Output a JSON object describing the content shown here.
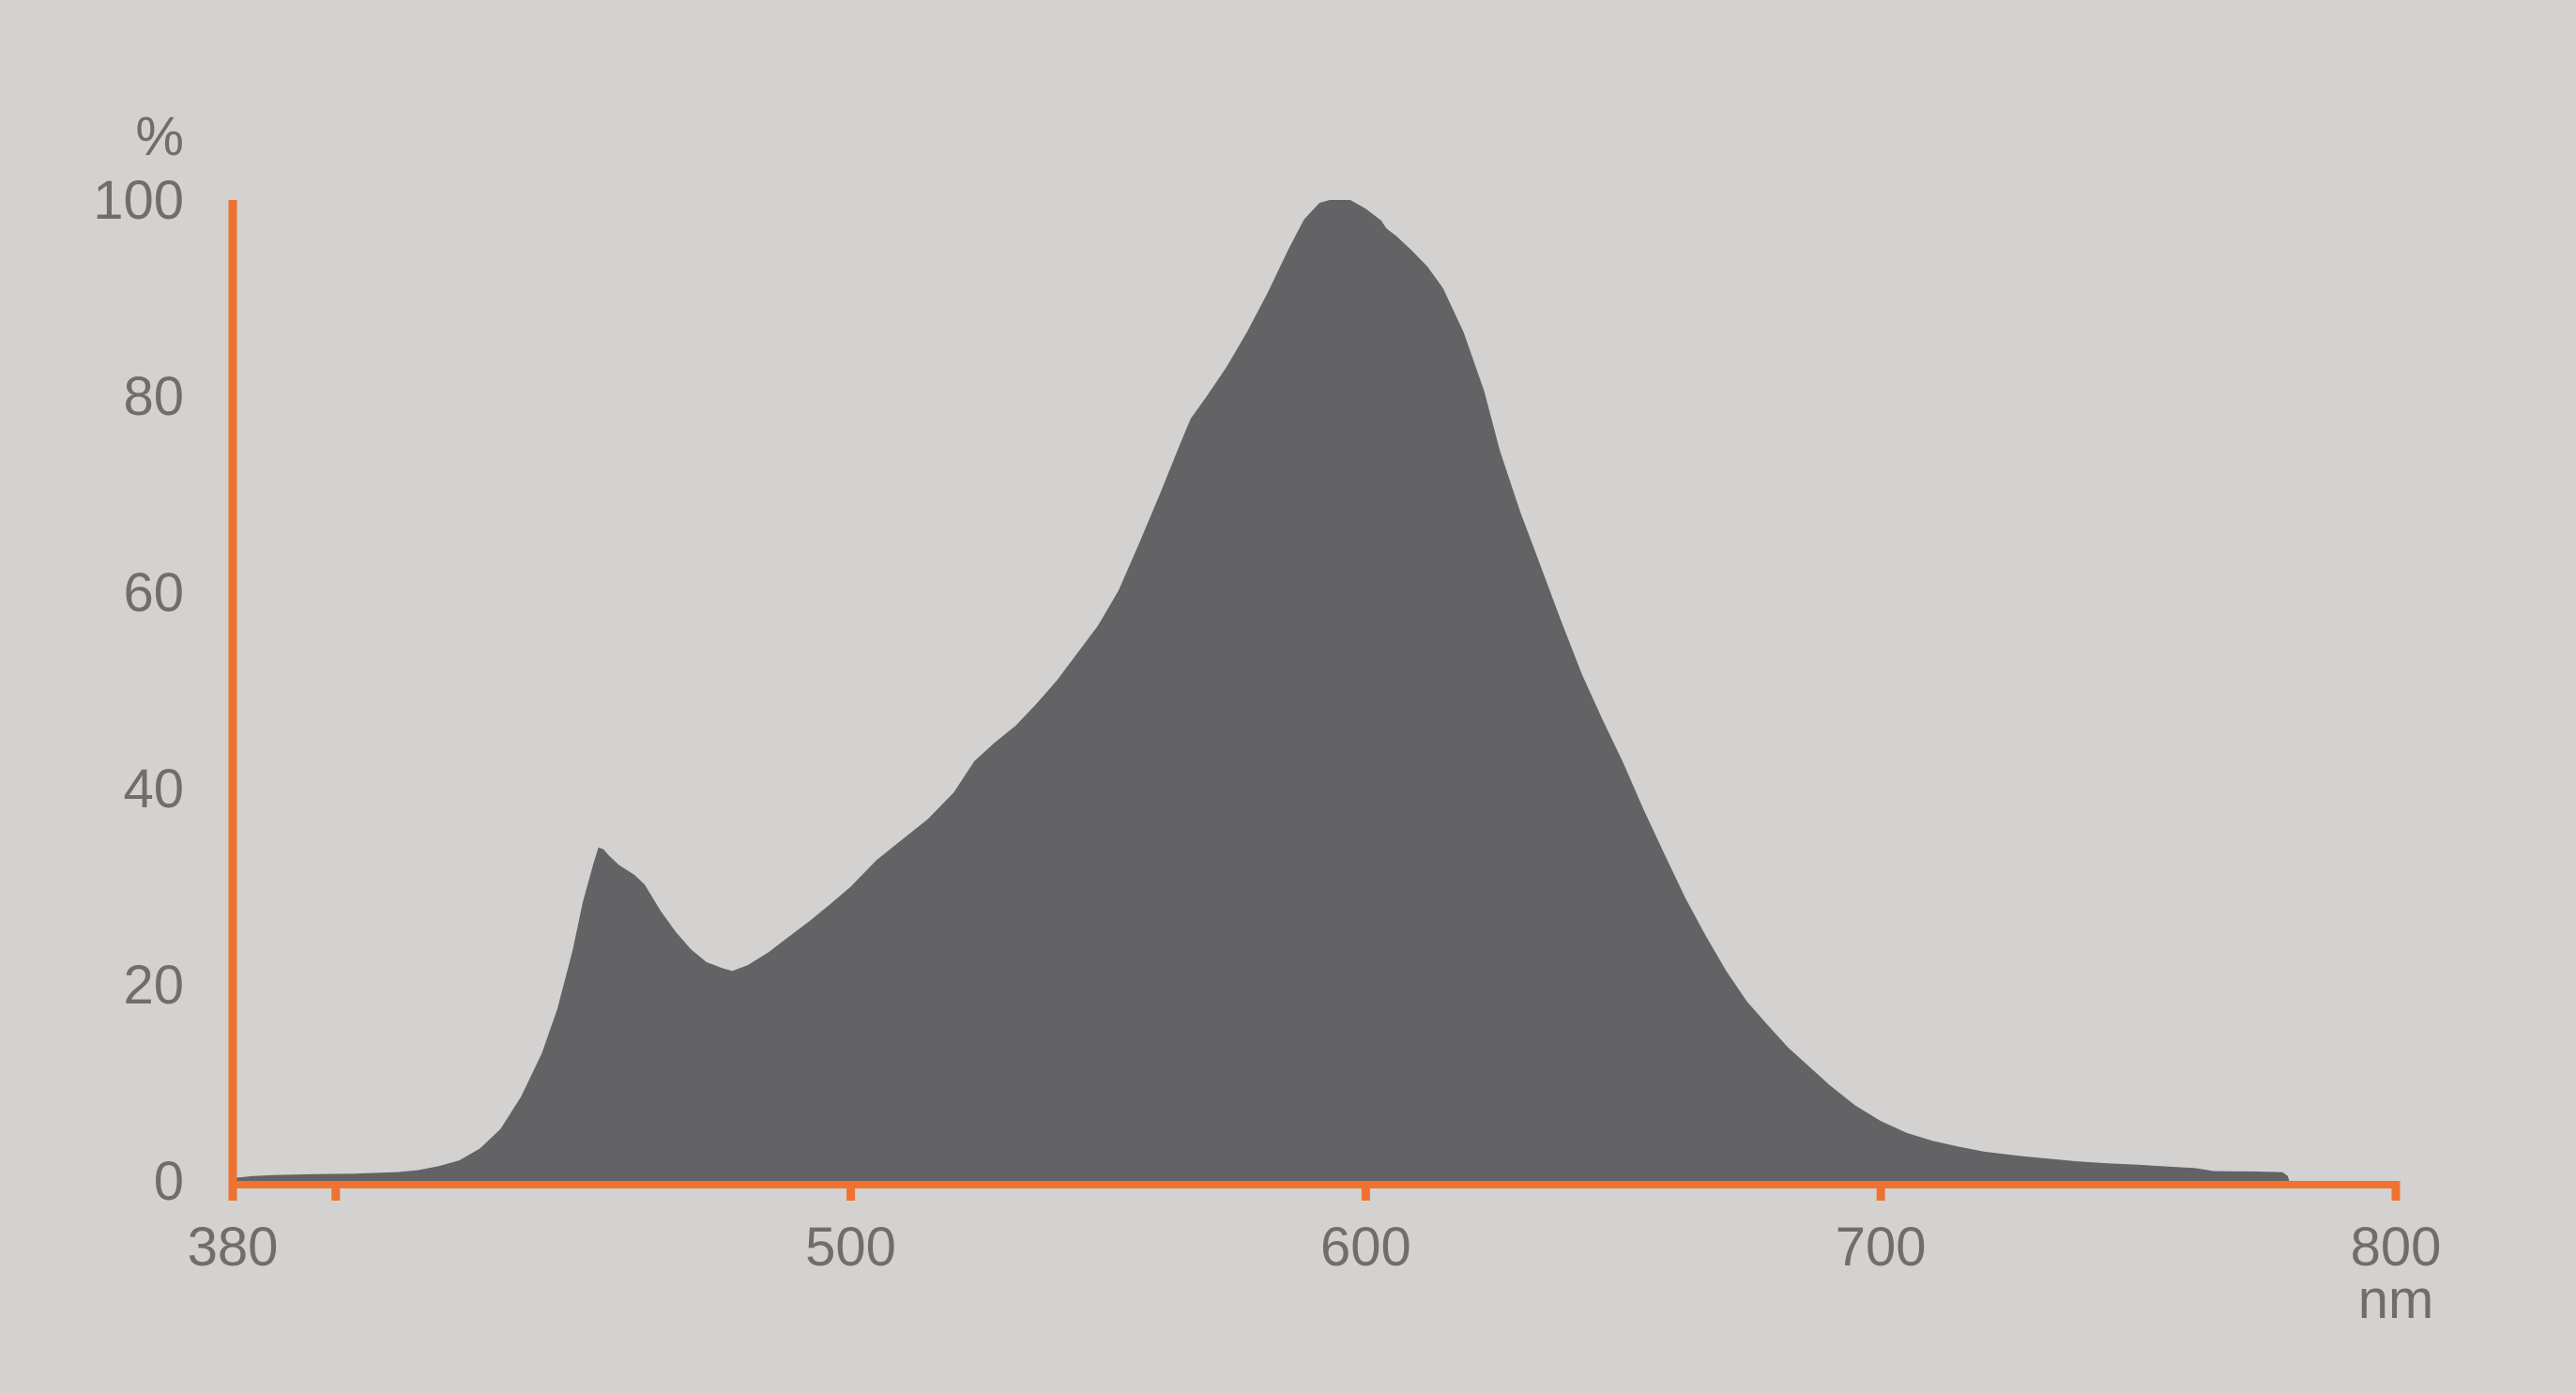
{
  "colors": {
    "background": "#D3D2D0",
    "curve_fill": "#636366",
    "axis": "#EF7230",
    "label_text": "#706E6B"
  },
  "chart_data": {
    "type": "area",
    "title": "",
    "xlabel": "nm",
    "ylabel": "%",
    "xlim": [
      380,
      800
    ],
    "ylim": [
      0,
      100
    ],
    "grid": false,
    "legend": false,
    "x_axis": {
      "unit": "nm",
      "ticks": [
        {
          "value": 380,
          "label": "380",
          "tick_mark": false
        },
        {
          "value": 400,
          "label": "",
          "tick_mark": true
        },
        {
          "value": 500,
          "label": "500",
          "tick_mark": true
        },
        {
          "value": 600,
          "label": "600",
          "tick_mark": true
        },
        {
          "value": 700,
          "label": "700",
          "tick_mark": true
        },
        {
          "value": 800,
          "label": "800",
          "tick_mark": true
        }
      ]
    },
    "y_axis": {
      "unit": "%",
      "ticks": [
        {
          "value": 0,
          "label": "0"
        },
        {
          "value": 20,
          "label": "20"
        },
        {
          "value": 40,
          "label": "40"
        },
        {
          "value": 60,
          "label": "60"
        },
        {
          "value": 80,
          "label": "80"
        },
        {
          "value": 100,
          "label": "100"
        }
      ]
    },
    "series": [
      {
        "points": [
          [
            380,
            0.3
          ],
          [
            384,
            0.5
          ],
          [
            388,
            0.6
          ],
          [
            392,
            0.65
          ],
          [
            396,
            0.7
          ],
          [
            400,
            0.72
          ],
          [
            404,
            0.75
          ],
          [
            408,
            0.82
          ],
          [
            412,
            0.9
          ],
          [
            416,
            1.1
          ],
          [
            420,
            1.5
          ],
          [
            424,
            2.1
          ],
          [
            428,
            3.3
          ],
          [
            432,
            5.3
          ],
          [
            436,
            8.6
          ],
          [
            440,
            13
          ],
          [
            443,
            17.5
          ],
          [
            446,
            23.5
          ],
          [
            448,
            28.5
          ],
          [
            450,
            32.3
          ],
          [
            451,
            34
          ],
          [
            452,
            33.8
          ],
          [
            453,
            33.2
          ],
          [
            455,
            32.2
          ],
          [
            458,
            31.2
          ],
          [
            460,
            30.2
          ],
          [
            463,
            27.6
          ],
          [
            466,
            25.4
          ],
          [
            469,
            23.6
          ],
          [
            472,
            22.3
          ],
          [
            475,
            21.7
          ],
          [
            477,
            21.4
          ],
          [
            480,
            22
          ],
          [
            484,
            23.3
          ],
          [
            488,
            24.9
          ],
          [
            492,
            26.5
          ],
          [
            496,
            28.2
          ],
          [
            500,
            30
          ],
          [
            505,
            32.7
          ],
          [
            510,
            34.8
          ],
          [
            515,
            36.9
          ],
          [
            520,
            39.6
          ],
          [
            524,
            42.8
          ],
          [
            528,
            44.7
          ],
          [
            532,
            46.4
          ],
          [
            536,
            48.6
          ],
          [
            540,
            51
          ],
          [
            544,
            53.8
          ],
          [
            548,
            56.6
          ],
          [
            552,
            60.2
          ],
          [
            556,
            65
          ],
          [
            560,
            70
          ],
          [
            564,
            75.2
          ],
          [
            566,
            77.7
          ],
          [
            569,
            79.9
          ],
          [
            573,
            83
          ],
          [
            577,
            86.6
          ],
          [
            581,
            90.6
          ],
          [
            585,
            95
          ],
          [
            588,
            98
          ],
          [
            591,
            99.7
          ],
          [
            593,
            100
          ],
          [
            597,
            100
          ],
          [
            600,
            99.1
          ],
          [
            603,
            97.9
          ],
          [
            604,
            97.1
          ],
          [
            606,
            96.3
          ],
          [
            609,
            94.8
          ],
          [
            612,
            93.2
          ],
          [
            615,
            91
          ],
          [
            619,
            86.5
          ],
          [
            623,
            80.5
          ],
          [
            626,
            74.5
          ],
          [
            630,
            68.2
          ],
          [
            634,
            62.6
          ],
          [
            638,
            57
          ],
          [
            642,
            51.6
          ],
          [
            646,
            47
          ],
          [
            650,
            42.6
          ],
          [
            654,
            37.8
          ],
          [
            658,
            33.3
          ],
          [
            662,
            28.9
          ],
          [
            666,
            25
          ],
          [
            670,
            21.4
          ],
          [
            674,
            18.3
          ],
          [
            678,
            15.9
          ],
          [
            682,
            13.6
          ],
          [
            686,
            11.7
          ],
          [
            690,
            9.8
          ],
          [
            695,
            7.7
          ],
          [
            700,
            6.1
          ],
          [
            705,
            4.9
          ],
          [
            710,
            4.1
          ],
          [
            715,
            3.5
          ],
          [
            720,
            3
          ],
          [
            726,
            2.6
          ],
          [
            732,
            2.3
          ],
          [
            738,
            2
          ],
          [
            744,
            1.8
          ],
          [
            750,
            1.65
          ],
          [
            756,
            1.45
          ],
          [
            761,
            1.3
          ],
          [
            763,
            1.15
          ],
          [
            764.5,
            1
          ],
          [
            768,
            0.98
          ],
          [
            772,
            0.97
          ],
          [
            776,
            0.92
          ],
          [
            778,
            0.88
          ],
          [
            779,
            0.5
          ],
          [
            779.3,
            0
          ]
        ]
      }
    ]
  }
}
